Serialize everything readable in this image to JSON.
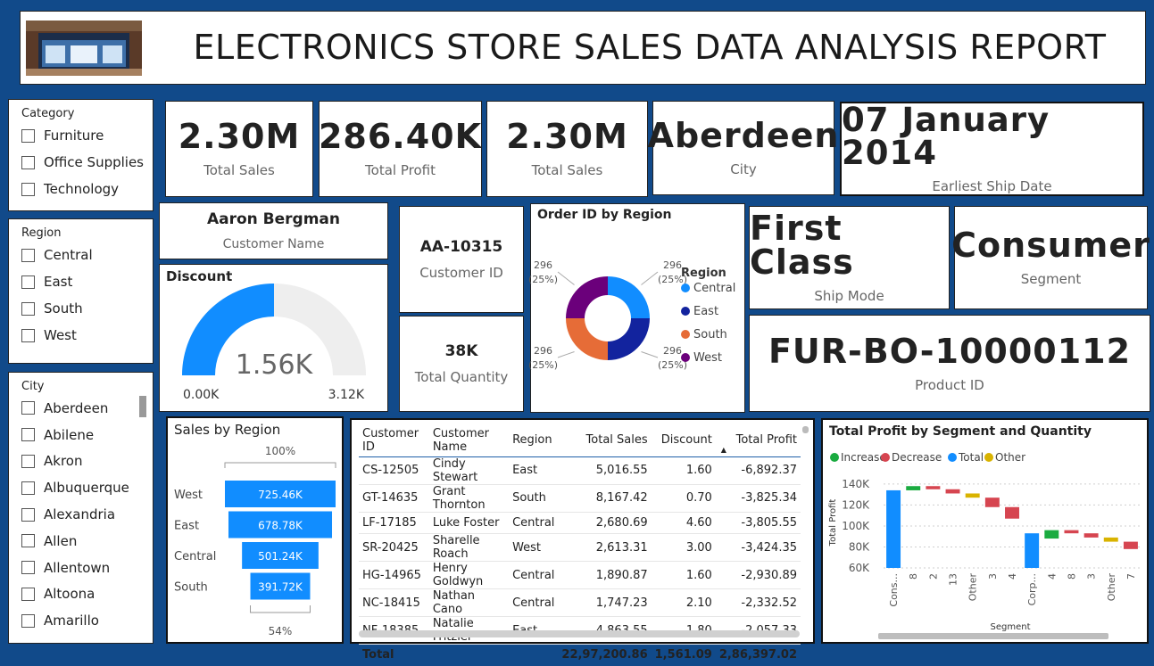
{
  "header": {
    "title": "ELECTRONICS STORE SALES DATA ANALYSIS REPORT"
  },
  "slicers": {
    "category": {
      "title": "Category",
      "items": [
        "Furniture",
        "Office Supplies",
        "Technology"
      ]
    },
    "region": {
      "title": "Region",
      "items": [
        "Central",
        "East",
        "South",
        "West"
      ]
    },
    "city": {
      "title": "City",
      "items": [
        "Aberdeen",
        "Abilene",
        "Akron",
        "Albuquerque",
        "Alexandria",
        "Allen",
        "Allentown",
        "Altoona",
        "Amarillo"
      ]
    }
  },
  "kpis": {
    "total_sales_1": {
      "value": "2.30M",
      "label": "Total Sales"
    },
    "total_profit": {
      "value": "286.40K",
      "label": "Total Profit"
    },
    "total_sales_2": {
      "value": "2.30M",
      "label": "Total Sales"
    },
    "city": {
      "value": "Aberdeen",
      "label": "City"
    },
    "ship_date": {
      "value": "07 January 2014",
      "label": "Earliest Ship Date"
    },
    "customer_name": {
      "value": "Aaron Bergman",
      "label": "Customer Name"
    },
    "customer_id": {
      "value": "AA-10315",
      "label": "Customer ID"
    },
    "total_quantity": {
      "value": "38K",
      "label": "Total Quantity"
    },
    "ship_mode": {
      "value": "First Class",
      "label": "Ship Mode"
    },
    "segment": {
      "value": "Consumer",
      "label": "Segment"
    },
    "product_id": {
      "value": "FUR-BO-10000112",
      "label": "Product ID"
    }
  },
  "colors": {
    "accent": "#118dff",
    "dark_blue": "#12239e",
    "orange": "#e66c37",
    "purple": "#6b007b",
    "increase": "#1aab40",
    "decrease": "#d64550",
    "other": "#d9b300",
    "background": "#114a8a"
  },
  "chart_data": [
    {
      "type": "gauge",
      "title": "Discount",
      "value": 1560,
      "value_label": "1.56K",
      "min": 0,
      "max": 3120,
      "min_label": "0.00K",
      "max_label": "3.12K"
    },
    {
      "type": "pie",
      "title": "Order ID by Region",
      "legend_title": "Region",
      "legend_position": "right",
      "categories": [
        "Central",
        "East",
        "South",
        "West"
      ],
      "values": [
        296,
        296,
        296,
        296
      ],
      "labels": [
        "296",
        "296",
        "296",
        "296"
      ],
      "percent_labels": [
        "(25%)",
        "(25%)",
        "(25%)",
        "(25%)"
      ]
    },
    {
      "type": "bar",
      "subtype": "funnel",
      "title": "Sales by Region",
      "categories": [
        "West",
        "East",
        "Central",
        "South"
      ],
      "values": [
        725.46,
        678.78,
        501.24,
        391.72
      ],
      "value_labels": [
        "725.46K",
        "678.78K",
        "501.24K",
        "391.72K"
      ],
      "top_label": "100%",
      "bottom_label": "54%"
    },
    {
      "type": "table",
      "columns": [
        "Customer ID",
        "Customer Name",
        "Region",
        "Total Sales",
        "Discount",
        "Total Profit"
      ],
      "rows": [
        [
          "CS-12505",
          "Cindy Stewart",
          "East",
          "5,016.55",
          "1.60",
          "-6,892.37"
        ],
        [
          "GT-14635",
          "Grant Thornton",
          "South",
          "8,167.42",
          "0.70",
          "-3,825.34"
        ],
        [
          "LF-17185",
          "Luke Foster",
          "Central",
          "2,680.69",
          "4.60",
          "-3,805.55"
        ],
        [
          "SR-20425",
          "Sharelle Roach",
          "West",
          "2,613.31",
          "3.00",
          "-3,424.35"
        ],
        [
          "HG-14965",
          "Henry Goldwyn",
          "Central",
          "1,890.87",
          "1.60",
          "-2,930.89"
        ],
        [
          "NC-18415",
          "Nathan Cano",
          "Central",
          "1,747.23",
          "2.10",
          "-2,332.52"
        ],
        [
          "NF-18385",
          "Natalie Fritzler",
          "East",
          "4,863.55",
          "1.80",
          "-2,057.33"
        ]
      ],
      "total": [
        "Total",
        "",
        "",
        "22,97,200.86",
        "1,561.09",
        "2,86,397.02"
      ]
    },
    {
      "type": "bar",
      "subtype": "waterfall",
      "title": "Total Profit by Segment and Quantity",
      "legend": [
        "Increase",
        "Decrease",
        "Total",
        "Other"
      ],
      "legend_position": "top-left",
      "xlabel": "Segment",
      "ylabel": "Total Profit",
      "ylim": [
        60,
        145
      ],
      "yticks": [
        "60K",
        "80K",
        "100K",
        "120K",
        "140K"
      ],
      "grid": true,
      "categories": [
        "Cons...",
        "8",
        "2",
        "13",
        "Other",
        "3",
        "4",
        "Corp...",
        "4",
        "8",
        "3",
        "Other",
        "7"
      ],
      "kinds": [
        "total",
        "increase",
        "decrease",
        "decrease",
        "other",
        "decrease",
        "decrease",
        "total",
        "increase",
        "decrease",
        "decrease",
        "other",
        "decrease"
      ],
      "start": [
        60,
        134,
        138,
        135,
        131,
        127,
        118,
        60,
        88,
        96,
        93,
        89,
        85
      ],
      "end": [
        134,
        138,
        135,
        131,
        127,
        118,
        107,
        93,
        96,
        93,
        89,
        85,
        78
      ]
    }
  ]
}
